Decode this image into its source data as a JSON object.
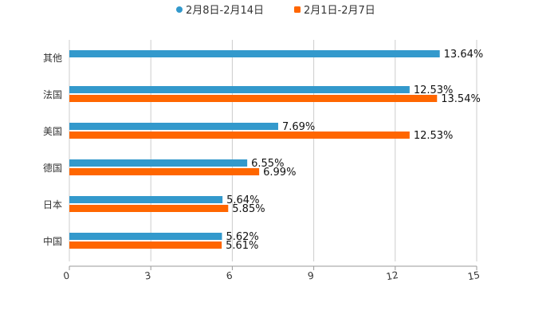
{
  "chart_data": {
    "type": "bar",
    "orientation": "horizontal",
    "title": "",
    "xlabel": "",
    "ylabel": "",
    "xlim": [
      0,
      15
    ],
    "xticks": [
      "0",
      "3",
      "6",
      "9",
      "12",
      "15"
    ],
    "grid": true,
    "legend_position": "top-center",
    "categories": [
      "其他",
      "法国",
      "美国",
      "德国",
      "日本",
      "中国"
    ],
    "series": [
      {
        "name": "2月8日-2月14日",
        "color": "#3399cc",
        "values": [
          13.64,
          12.53,
          7.69,
          6.55,
          5.64,
          5.62
        ],
        "labels": [
          "13.64%",
          "12.53%",
          "7.69%",
          "6.55%",
          "5.64%",
          "5.62%"
        ]
      },
      {
        "name": "2月1日-2月7日",
        "color": "#ff6600",
        "values": [
          null,
          13.54,
          12.53,
          6.99,
          5.85,
          5.61
        ],
        "labels": [
          null,
          "13.54%",
          "12.53%",
          "6.99%",
          "5.85%",
          "5.61%"
        ]
      }
    ]
  }
}
